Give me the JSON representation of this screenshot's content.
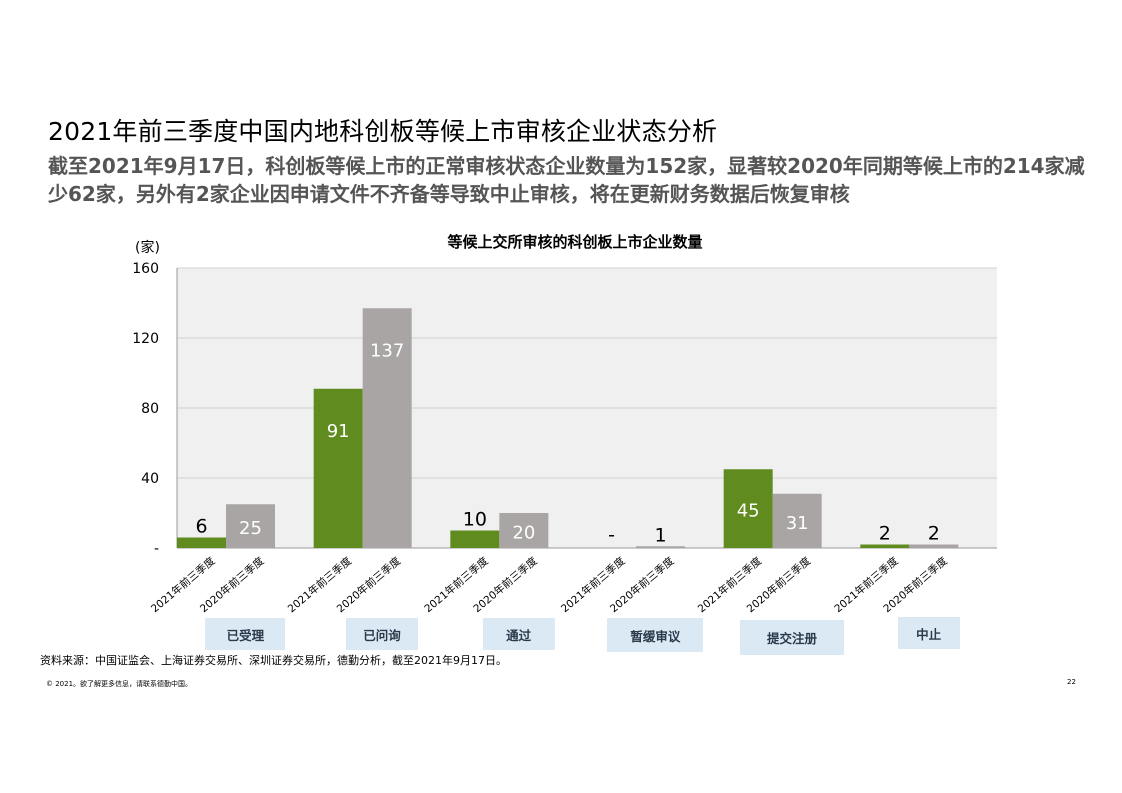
{
  "title": "2021年前三季度中国内地科创板等候上市审核企业状态分析",
  "subtitle": "截至2021年9月17日，科创板等候上市的正常审核状态企业数量为152家，显著较2020年同期等候上市的214家减少62家，另外有2家企业因申请文件不齐备等导致中止审核，将在更新财务数据后恢复审核",
  "source": "资料来源：中国证监会、上海证券交易所、深圳证券交易所，德勤分析，截至2021年9月17日。",
  "copyright": "© 2021。欲了解更多信息，请联系德勤中国。",
  "page_number": "22",
  "chart_data": {
    "type": "bar",
    "title": "等候上交所审核的科创板上市企业数量",
    "ylabel": "(家)",
    "ylim": [
      0,
      160
    ],
    "yticks": [
      0,
      40,
      80,
      120,
      160
    ],
    "ytick_labels": [
      "-",
      "40",
      "80",
      "120",
      "160"
    ],
    "grid": true,
    "groups": [
      {
        "name": "已受理",
        "bars": [
          {
            "period": "2021年前三季度",
            "value": 6,
            "label": "6"
          },
          {
            "period": "2020年前三季度",
            "value": 25,
            "label": "25"
          }
        ]
      },
      {
        "name": "已问询",
        "bars": [
          {
            "period": "2021年前三季度",
            "value": 91,
            "label": "91"
          },
          {
            "period": "2020年前三季度",
            "value": 137,
            "label": "137"
          }
        ]
      },
      {
        "name": "通过",
        "bars": [
          {
            "period": "2021年前三季度",
            "value": 10,
            "label": "10"
          },
          {
            "period": "2020年前三季度",
            "value": 20,
            "label": "20"
          }
        ]
      },
      {
        "name": "暂缓审议",
        "bars": [
          {
            "period": "2021年前三季度",
            "value": 0,
            "label": "-"
          },
          {
            "period": "2020年前三季度",
            "value": 1,
            "label": "1"
          }
        ]
      },
      {
        "name": "提交注册",
        "bars": [
          {
            "period": "2021年前三季度",
            "value": 45,
            "label": "45"
          },
          {
            "period": "2020年前三季度",
            "value": 31,
            "label": "31"
          }
        ]
      },
      {
        "name": "中止",
        "bars": [
          {
            "period": "2021年前三季度",
            "value": 2,
            "label": "2"
          },
          {
            "period": "2020年前三季度",
            "value": 2,
            "label": "2"
          }
        ]
      }
    ],
    "colors": {
      "2021年前三季度": "#5f8b1f",
      "2020年前三季度": "#a8a5a4",
      "plot_bg": "#f0f0f0",
      "category_box": "#dbe9f5"
    }
  }
}
